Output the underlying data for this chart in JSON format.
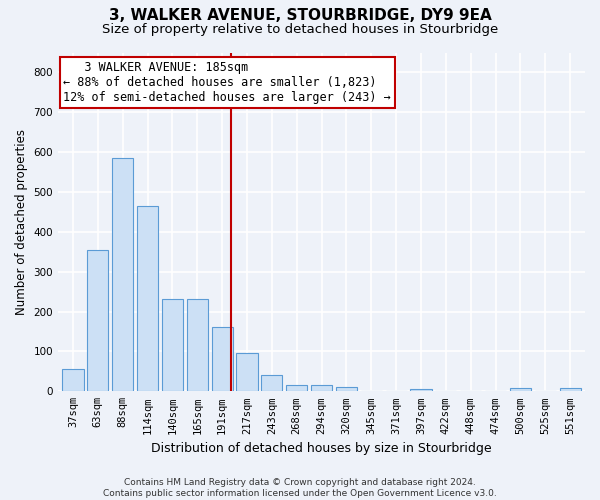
{
  "title1": "3, WALKER AVENUE, STOURBRIDGE, DY9 9EA",
  "title2": "Size of property relative to detached houses in Stourbridge",
  "xlabel": "Distribution of detached houses by size in Stourbridge",
  "ylabel": "Number of detached properties",
  "footer1": "Contains HM Land Registry data © Crown copyright and database right 2024.",
  "footer2": "Contains public sector information licensed under the Open Government Licence v3.0.",
  "categories": [
    "37sqm",
    "63sqm",
    "88sqm",
    "114sqm",
    "140sqm",
    "165sqm",
    "191sqm",
    "217sqm",
    "243sqm",
    "268sqm",
    "294sqm",
    "320sqm",
    "345sqm",
    "371sqm",
    "397sqm",
    "422sqm",
    "448sqm",
    "474sqm",
    "500sqm",
    "525sqm",
    "551sqm"
  ],
  "values": [
    55,
    355,
    585,
    465,
    232,
    232,
    162,
    95,
    42,
    17,
    17,
    12,
    0,
    0,
    5,
    0,
    0,
    0,
    8,
    0,
    8
  ],
  "bar_color": "#cce0f5",
  "bar_edge_color": "#5b9bd5",
  "highlight_line_index": 6,
  "highlight_line_color": "#c00000",
  "annotation_line1": "   3 WALKER AVENUE: 185sqm",
  "annotation_line2": "← 88% of detached houses are smaller (1,823)",
  "annotation_line3": "12% of semi-detached houses are larger (243) →",
  "annotation_box_color": "#ffffff",
  "annotation_box_edge_color": "#c00000",
  "ylim": [
    0,
    850
  ],
  "yticks": [
    0,
    100,
    200,
    300,
    400,
    500,
    600,
    700,
    800
  ],
  "background_color": "#eef2f9",
  "grid_color": "#ffffff",
  "title1_fontsize": 11,
  "title2_fontsize": 9.5,
  "xlabel_fontsize": 9,
  "ylabel_fontsize": 8.5,
  "tick_fontsize": 7.5,
  "annotation_fontsize": 8.5,
  "footer_fontsize": 6.5
}
